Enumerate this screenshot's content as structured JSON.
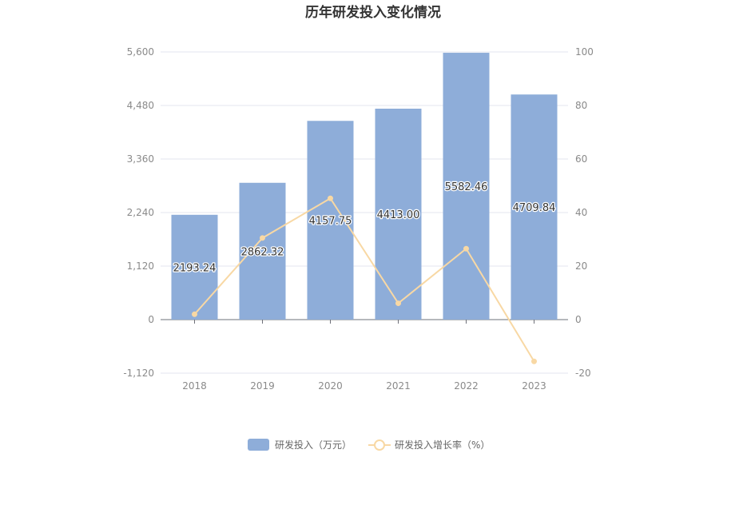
{
  "chart_data": {
    "type": "bar",
    "title": "历年研发投入变化情况",
    "categories": [
      "2018",
      "2019",
      "2020",
      "2021",
      "2022",
      "2023"
    ],
    "series": [
      {
        "name": "研发投入（万元）",
        "type": "bar",
        "axis": "left",
        "values": [
          2193.24,
          2862.32,
          4157.75,
          4413.0,
          5582.46,
          4709.84
        ],
        "labels": [
          "2193.24",
          "2862.32",
          "4157.75",
          "4413.00",
          "5582.46",
          "4709.84"
        ],
        "color": "#8eadd9"
      },
      {
        "name": "研发投入增长率（%）",
        "type": "line",
        "axis": "right",
        "values": [
          2.0,
          30.5,
          45.3,
          6.1,
          26.5,
          -15.6
        ],
        "color": "#f8d8a4"
      }
    ],
    "y_left": {
      "ylim": [
        -1120,
        5600
      ],
      "ticks": [
        -1120,
        0,
        1120,
        2240,
        3360,
        4480,
        5600
      ],
      "tick_labels": [
        "-1,120",
        "0",
        "1,120",
        "2,240",
        "3,360",
        "4,480",
        "5,600"
      ]
    },
    "y_right": {
      "ylim": [
        -20,
        100
      ],
      "ticks": [
        -20,
        0,
        20,
        40,
        60,
        80,
        100
      ],
      "tick_labels": [
        "-20",
        "0",
        "20",
        "40",
        "60",
        "80",
        "100"
      ]
    },
    "grid": true,
    "legend_position": "bottom-center",
    "colors": {
      "axis_text": "#8a8a8a",
      "grid": "#e3e6ef",
      "axis_line": "#6e7079"
    }
  }
}
